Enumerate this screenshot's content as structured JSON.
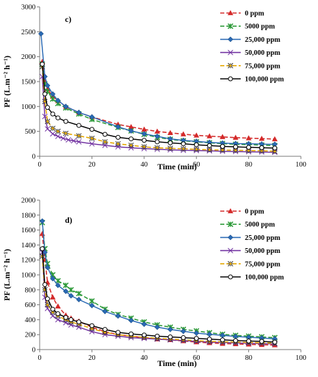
{
  "chart_data": [
    {
      "type": "line",
      "panel_label": "c)",
      "xlabel": "Time (min)",
      "ylabel": "PF (L.m⁻² h⁻¹)",
      "xlim": [
        0,
        100
      ],
      "ylim": [
        0,
        3000
      ],
      "xticks": [
        0,
        20,
        40,
        60,
        80,
        100
      ],
      "yticks": [
        0,
        500,
        1000,
        1500,
        2000,
        2500,
        3000
      ],
      "grid": false,
      "legend_position": "top-right",
      "series": [
        {
          "name": "0 ppm",
          "color": "#d42a2a",
          "dash": "dashed",
          "marker": "triangle",
          "x": [
            1,
            2,
            3,
            5,
            7,
            10,
            15,
            20,
            30,
            35,
            40,
            45,
            50,
            55,
            60,
            65,
            70,
            75,
            80,
            85,
            90
          ],
          "y": [
            1900,
            1500,
            1350,
            1200,
            1110,
            1000,
            880,
            790,
            640,
            590,
            540,
            500,
            470,
            445,
            420,
            405,
            390,
            375,
            365,
            355,
            345
          ]
        },
        {
          "name": "5000 ppm",
          "color": "#2e9a3a",
          "dash": "dashed",
          "marker": "star",
          "x": [
            1,
            2,
            3,
            5,
            7,
            10,
            15,
            20,
            30,
            35,
            40,
            45,
            50,
            55,
            60,
            65,
            70,
            75,
            80,
            85,
            90
          ],
          "y": [
            1850,
            1450,
            1300,
            1150,
            1060,
            970,
            850,
            740,
            580,
            510,
            440,
            380,
            340,
            310,
            290,
            270,
            255,
            240,
            232,
            225,
            215
          ]
        },
        {
          "name": "25,000 ppm",
          "color": "#2a6ab5",
          "dash": "solid",
          "marker": "diamond",
          "x": [
            0.5,
            2,
            3,
            5,
            7,
            10,
            15,
            20,
            30,
            35,
            40,
            45,
            50,
            55,
            60,
            65,
            70,
            75,
            80,
            85,
            90
          ],
          "y": [
            2460,
            1600,
            1420,
            1250,
            1120,
            1000,
            880,
            790,
            590,
            510,
            450,
            400,
            350,
            320,
            300,
            280,
            265,
            255,
            250,
            245,
            240
          ]
        },
        {
          "name": "50,000 ppm",
          "color": "#7030a0",
          "dash": "solid",
          "marker": "x",
          "x": [
            1,
            2,
            3,
            5,
            7,
            9,
            11,
            13,
            15,
            20,
            25,
            30,
            35,
            40,
            45,
            50,
            55,
            60,
            65,
            70,
            75,
            80,
            85,
            90
          ],
          "y": [
            1600,
            800,
            550,
            450,
            400,
            360,
            330,
            310,
            290,
            250,
            220,
            190,
            170,
            155,
            140,
            130,
            120,
            115,
            110,
            100,
            95,
            90,
            85,
            80
          ]
        },
        {
          "name": "75,000 ppm",
          "color": "#e5a800",
          "dash": "dashed",
          "marker": "asterisk",
          "x": [
            1,
            2,
            3,
            5,
            7,
            10,
            15,
            20,
            25,
            30,
            35,
            40,
            45,
            50,
            55,
            60,
            65,
            70,
            75,
            80,
            85,
            90
          ],
          "y": [
            1800,
            1100,
            700,
            560,
            500,
            460,
            410,
            360,
            290,
            250,
            220,
            190,
            170,
            160,
            150,
            140,
            130,
            125,
            120,
            115,
            110,
            100
          ]
        },
        {
          "name": "100,000 ppm",
          "color": "#000000",
          "dash": "solid",
          "marker": "circle",
          "x": [
            1,
            2,
            3,
            5,
            7,
            10,
            15,
            20,
            25,
            30,
            35,
            40,
            45,
            50,
            55,
            60,
            65,
            70,
            75,
            80,
            85,
            90
          ],
          "y": [
            1850,
            1250,
            980,
            850,
            770,
            700,
            620,
            540,
            440,
            380,
            350,
            320,
            290,
            270,
            250,
            230,
            215,
            200,
            190,
            180,
            172,
            165
          ]
        }
      ]
    },
    {
      "type": "line",
      "panel_label": "d)",
      "xlabel": "Time (min)",
      "ylabel": "PF (L.m⁻² h⁻¹)",
      "xlim": [
        0,
        100
      ],
      "ylim": [
        0,
        2000
      ],
      "xticks": [
        0,
        20,
        40,
        60,
        80,
        100
      ],
      "yticks": [
        0,
        200,
        400,
        600,
        800,
        1000,
        1200,
        1400,
        1600,
        1800,
        2000
      ],
      "grid": false,
      "legend_position": "top-right",
      "series": [
        {
          "name": "0 ppm",
          "color": "#d42a2a",
          "dash": "dashed",
          "marker": "triangle",
          "x": [
            1,
            2,
            3,
            5,
            7,
            10,
            12,
            15,
            20,
            25,
            30,
            35,
            40,
            45,
            50,
            55,
            60,
            65,
            70,
            75,
            80,
            85,
            90
          ],
          "y": [
            1550,
            1200,
            900,
            700,
            580,
            460,
            420,
            380,
            300,
            240,
            200,
            180,
            160,
            140,
            130,
            115,
            100,
            90,
            80,
            75,
            70,
            65,
            60
          ]
        },
        {
          "name": "5000 ppm",
          "color": "#2e9a3a",
          "dash": "dashed",
          "marker": "star",
          "x": [
            1,
            2,
            3,
            5,
            7,
            10,
            12,
            15,
            20,
            25,
            30,
            35,
            40,
            45,
            50,
            55,
            60,
            65,
            70,
            75,
            80,
            85,
            90
          ],
          "y": [
            1700,
            1350,
            1150,
            1000,
            920,
            860,
            800,
            750,
            650,
            540,
            470,
            420,
            370,
            330,
            300,
            270,
            250,
            225,
            205,
            190,
            180,
            170,
            160
          ]
        },
        {
          "name": "25,000 ppm",
          "color": "#2a6ab5",
          "dash": "solid",
          "marker": "diamond",
          "x": [
            1,
            2,
            3,
            5,
            7,
            10,
            12,
            15,
            20,
            25,
            30,
            35,
            40,
            45,
            50,
            55,
            60,
            65,
            70,
            75,
            80,
            85,
            90
          ],
          "y": [
            1720,
            1300,
            1100,
            950,
            860,
            780,
            720,
            670,
            590,
            510,
            450,
            390,
            340,
            300,
            270,
            245,
            220,
            205,
            190,
            175,
            165,
            155,
            145
          ]
        },
        {
          "name": "50,000 ppm",
          "color": "#7030a0",
          "dash": "solid",
          "marker": "x",
          "x": [
            1,
            2,
            3,
            5,
            7,
            10,
            12,
            15,
            20,
            25,
            30,
            35,
            40,
            45,
            50,
            55,
            60,
            65,
            70,
            75,
            80,
            85,
            90
          ],
          "y": [
            1300,
            700,
            550,
            450,
            400,
            360,
            330,
            300,
            240,
            200,
            180,
            160,
            150,
            140,
            130,
            120,
            110,
            100,
            95,
            90,
            85,
            80,
            75
          ]
        },
        {
          "name": "75,000 ppm",
          "color": "#e5a800",
          "dash": "dashed",
          "marker": "asterisk",
          "x": [
            1,
            2,
            3,
            5,
            7,
            10,
            12,
            15,
            20,
            25,
            30,
            35,
            40,
            45,
            50,
            55,
            60,
            65,
            70,
            75,
            80,
            85,
            90
          ],
          "y": [
            1250,
            800,
            600,
            500,
            450,
            400,
            370,
            340,
            280,
            230,
            200,
            180,
            165,
            150,
            140,
            130,
            120,
            110,
            105,
            100,
            95,
            90,
            85
          ]
        },
        {
          "name": "100,000 ppm",
          "color": "#000000",
          "dash": "solid",
          "marker": "circle",
          "x": [
            1,
            2,
            3,
            5,
            7,
            10,
            12,
            15,
            20,
            25,
            30,
            35,
            40,
            45,
            50,
            55,
            60,
            65,
            70,
            75,
            80,
            85,
            90
          ],
          "y": [
            1350,
            870,
            680,
            540,
            480,
            430,
            400,
            370,
            320,
            270,
            230,
            210,
            195,
            180,
            170,
            160,
            150,
            140,
            130,
            120,
            115,
            110,
            100
          ]
        }
      ]
    }
  ]
}
